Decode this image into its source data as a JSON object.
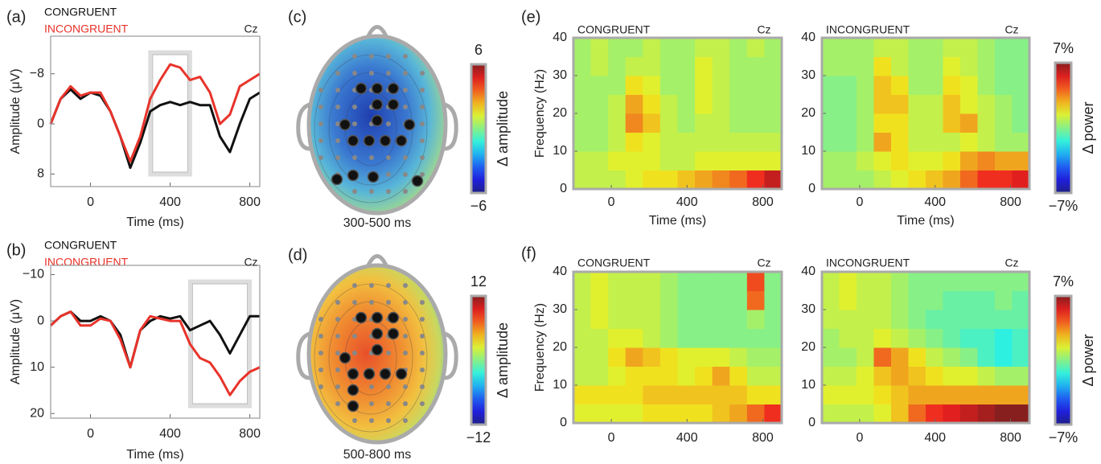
{
  "chart_data": [
    {
      "type": "line",
      "panel_label": "(a)",
      "channel": "Cz",
      "xlabel": "Time (ms)",
      "ylabel": "Amplitude (μV)",
      "x": [
        -200,
        -150,
        -100,
        -50,
        0,
        50,
        100,
        150,
        200,
        250,
        300,
        350,
        400,
        450,
        500,
        550,
        600,
        650,
        700,
        750,
        800,
        850
      ],
      "xlim": [
        -200,
        850
      ],
      "xticks": [
        0,
        400,
        800
      ],
      "ylim": [
        10,
        -14
      ],
      "yticks": [
        {
          "value": -8,
          "label": "−8"
        },
        0,
        8
      ],
      "highlight_window": [
        300,
        500
      ],
      "series": [
        {
          "name": "CONGRUENT",
          "color": "#111111",
          "values": [
            0,
            -4,
            -5.5,
            -4,
            -5,
            -4.5,
            -2,
            2,
            7,
            3,
            -2,
            -3,
            -3.5,
            -3,
            -3.5,
            -3,
            -3,
            2,
            4.5,
            0,
            -4,
            -5
          ]
        },
        {
          "name": "INCONGRUENT",
          "color": "#e8332a",
          "values": [
            0,
            -4,
            -6,
            -4.5,
            -5,
            -5,
            -2,
            2,
            6,
            2,
            -4,
            -7,
            -9.5,
            -9,
            -7,
            -7.5,
            -5,
            0,
            -1.5,
            -6,
            -7,
            -8
          ]
        }
      ]
    },
    {
      "type": "line",
      "panel_label": "(b)",
      "channel": "Cz",
      "xlabel": "Time (ms)",
      "ylabel": "Amplitude (μV)",
      "x": [
        -200,
        -150,
        -100,
        -50,
        0,
        50,
        100,
        150,
        200,
        250,
        300,
        350,
        400,
        450,
        500,
        550,
        600,
        650,
        700,
        750,
        800,
        850
      ],
      "xlim": [
        -200,
        850
      ],
      "xticks": [
        0,
        400,
        800
      ],
      "ylim": [
        21,
        -12
      ],
      "yticks": [
        {
          "value": -10,
          "label": "−10"
        },
        0,
        10,
        20
      ],
      "highlight_window": [
        500,
        800
      ],
      "series": [
        {
          "name": "CONGRUENT",
          "color": "#111111",
          "values": [
            1,
            -1,
            -2,
            0,
            0,
            -1,
            0,
            3,
            10,
            2,
            0,
            -1,
            -0.5,
            -1,
            2,
            1,
            0,
            3,
            7,
            3,
            -1,
            -1
          ]
        },
        {
          "name": "INCONGRUENT",
          "color": "#e8332a",
          "values": [
            1,
            -1,
            -2,
            1,
            1,
            -0.5,
            0,
            4,
            10,
            2,
            -1,
            -0.5,
            0,
            0,
            5,
            8,
            9,
            12,
            16,
            13,
            11,
            10
          ]
        }
      ]
    },
    {
      "type": "topoplot",
      "panel_label": "(c)",
      "caption": "300-500 ms",
      "colorbar_label": "Δ amplitude",
      "clim": [
        -6,
        6
      ],
      "cticks": [
        6,
        {
          "value": -6,
          "label": "−6"
        }
      ]
    },
    {
      "type": "topoplot",
      "panel_label": "(d)",
      "caption": "500-800 ms",
      "colorbar_label": "Δ amplitude",
      "clim": [
        -12,
        12
      ],
      "cticks": [
        12,
        {
          "value": -12,
          "label": "−12"
        }
      ]
    },
    {
      "type": "heatmap",
      "panel_label": "(e)",
      "title": "CONGRUENT",
      "channel": "Cz",
      "xlabel": "Time (ms)",
      "ylabel": "Frequency (Hz)",
      "xlim": [
        -200,
        900
      ],
      "xticks": [
        0,
        400,
        800
      ],
      "ylim": [
        0,
        40
      ],
      "yticks": [
        0,
        10,
        20,
        30,
        40
      ],
      "z": [
        [
          1,
          1,
          1,
          1.5,
          2,
          2,
          2.5,
          3,
          3.5,
          4,
          5,
          6
        ],
        [
          1,
          1,
          1.5,
          1.5,
          1.5,
          1,
          1,
          1.5,
          1.5,
          1.5,
          1.5,
          1.5
        ],
        [
          0.5,
          0.5,
          1,
          2,
          1.5,
          1,
          1,
          1,
          1,
          1,
          1,
          1
        ],
        [
          0.5,
          0.5,
          1,
          3.5,
          2.5,
          1,
          0.5,
          1,
          1,
          0.5,
          0.5,
          0.5
        ],
        [
          0.5,
          0.5,
          1,
          3,
          2,
          1,
          0.5,
          1.5,
          1,
          0.5,
          0.5,
          0.5
        ],
        [
          0.5,
          0.5,
          0.5,
          2,
          1.5,
          0.5,
          0.5,
          1.5,
          1,
          0.5,
          0.5,
          0.5
        ],
        [
          0.5,
          1,
          0.5,
          1,
          1,
          0.5,
          0.5,
          1.5,
          1,
          0.5,
          0.5,
          0.5
        ],
        [
          0.5,
          1,
          0.5,
          0.5,
          1,
          0.5,
          0.5,
          1,
          1,
          0.5,
          1,
          0.5
        ]
      ]
    },
    {
      "type": "heatmap",
      "title": "INCONGRUENT",
      "channel": "Cz",
      "xlabel": "Time (ms)",
      "xlim": [
        -200,
        900
      ],
      "xticks": [
        0,
        400,
        800
      ],
      "ylim": [
        0,
        40
      ],
      "yticks": [
        0,
        10,
        20,
        30,
        40
      ],
      "clim": [
        -7,
        7
      ],
      "cticks": [
        {
          "value": 7,
          "label": "7%"
        },
        {
          "value": -7,
          "label": "−7%"
        }
      ],
      "colorbar_label": "Δ power",
      "z": [
        [
          0.5,
          0.5,
          0.5,
          1,
          1.5,
          2,
          2.5,
          3,
          4,
          5,
          5,
          5.5
        ],
        [
          0.5,
          0.5,
          1,
          1.5,
          2,
          1.5,
          1.5,
          2,
          3,
          3.5,
          3,
          3
        ],
        [
          0,
          0,
          0.5,
          3,
          2,
          1,
          1,
          1,
          1.5,
          1,
          0.5,
          0.5
        ],
        [
          0,
          0,
          0.5,
          2,
          2,
          1,
          1,
          2.5,
          3,
          1,
          0.5,
          0
        ],
        [
          0,
          0,
          0.5,
          2.5,
          2.5,
          1,
          1,
          2.5,
          1.5,
          1,
          0.5,
          0
        ],
        [
          0,
          0,
          0.5,
          2.5,
          2,
          0.5,
          0.5,
          2,
          1.5,
          0.5,
          0,
          0
        ],
        [
          0.5,
          0.5,
          0.5,
          2,
          1,
          0.5,
          0.5,
          1.5,
          1,
          0.5,
          0,
          0
        ],
        [
          0.5,
          0.5,
          0.5,
          1,
          1,
          0.5,
          0.5,
          1,
          1,
          0.5,
          0,
          0
        ]
      ]
    },
    {
      "type": "heatmap",
      "panel_label": "(f)",
      "title": "CONGRUENT",
      "channel": "Cz",
      "ylabel": "Frequency (Hz)",
      "xlim": [
        -200,
        900
      ],
      "xticks": [
        0,
        400,
        800
      ],
      "ylim": [
        0,
        40
      ],
      "yticks": [
        0,
        10,
        20,
        30,
        40
      ],
      "z": [
        [
          1.5,
          1.5,
          1.5,
          1.5,
          2,
          2,
          2,
          2,
          2.5,
          3,
          4,
          5
        ],
        [
          2,
          2,
          2,
          2,
          2.5,
          2.5,
          2.5,
          2.5,
          2.5,
          2.5,
          2,
          2
        ],
        [
          1,
          1,
          1.5,
          2,
          2,
          2,
          1.5,
          2,
          3,
          2,
          1,
          1
        ],
        [
          1,
          1,
          2,
          3,
          2.5,
          2,
          1.5,
          1.5,
          1.5,
          1,
          0.5,
          0.5
        ],
        [
          1,
          1,
          1.5,
          1.5,
          1,
          0.5,
          0,
          0,
          0,
          0,
          0,
          0
        ],
        [
          1,
          1.5,
          1,
          1,
          1,
          0.5,
          0,
          0,
          0,
          0,
          0.5,
          0
        ],
        [
          1,
          1.5,
          1,
          1,
          1,
          0.5,
          0,
          0,
          0,
          0,
          4,
          0
        ],
        [
          1,
          1.5,
          1,
          1,
          1,
          0.5,
          0,
          0,
          0,
          0,
          4.5,
          0
        ]
      ]
    },
    {
      "type": "heatmap",
      "title": "INCONGRUENT",
      "channel": "Cz",
      "xlim": [
        -200,
        900
      ],
      "xticks": [
        0,
        400,
        800
      ],
      "ylim": [
        0,
        40
      ],
      "yticks": [
        0,
        10,
        20,
        30,
        40
      ],
      "clim": [
        -7,
        7
      ],
      "cticks": [
        {
          "value": 7,
          "label": "7%"
        },
        {
          "value": -7,
          "label": "−7%"
        }
      ],
      "colorbar_label": "Δ power",
      "z": [
        [
          1,
          1,
          1,
          1.5,
          2.5,
          4,
          5,
          5.5,
          6,
          6.5,
          7,
          7
        ],
        [
          1.5,
          1.5,
          1.5,
          2,
          2.5,
          3,
          3,
          3,
          3,
          3,
          3,
          3
        ],
        [
          1,
          1,
          1.5,
          2.5,
          3,
          2.5,
          2,
          1.5,
          1.5,
          1,
          0.5,
          0.5
        ],
        [
          0.5,
          0.5,
          1,
          4,
          3,
          2,
          1,
          0.5,
          0,
          -1,
          -1.5,
          -1
        ],
        [
          0.5,
          1,
          1,
          1.5,
          1,
          0.5,
          0,
          -0.5,
          -1,
          -1,
          -1.5,
          -1
        ],
        [
          1,
          1,
          1,
          1,
          0.5,
          0,
          -0.5,
          -0.5,
          -0.5,
          -0.5,
          -0.5,
          -0.5
        ],
        [
          1,
          1.5,
          1,
          1,
          0.5,
          0,
          0,
          -0.5,
          -0.5,
          -0.5,
          0,
          -0.5
        ],
        [
          1,
          1.5,
          1,
          1,
          0.5,
          0,
          0,
          0,
          0,
          0,
          0,
          0
        ]
      ]
    }
  ]
}
